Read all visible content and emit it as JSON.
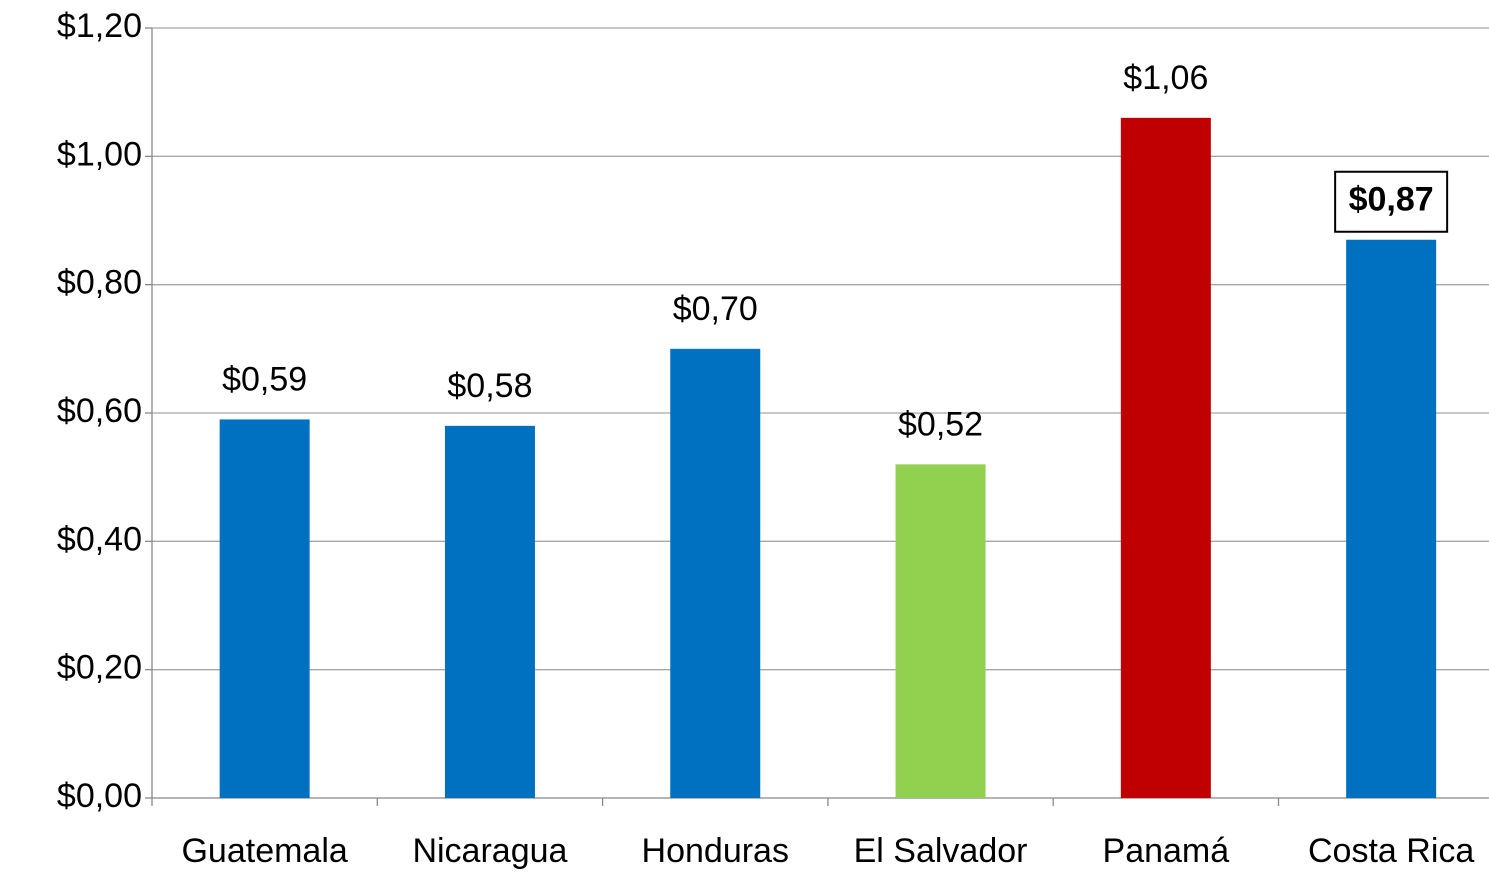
{
  "chart_data": {
    "type": "bar",
    "categories": [
      "Guatemala",
      "Nicaragua",
      "Honduras",
      "El Salvador",
      "Panamá",
      "Costa Rica"
    ],
    "values": [
      0.59,
      0.58,
      0.7,
      0.52,
      1.06,
      0.87
    ],
    "value_labels": [
      "$0,59",
      "$0,58",
      "$0,70",
      "$0,52",
      "$1,06",
      "$0,87"
    ],
    "colors": [
      "#0070c0",
      "#0070c0",
      "#0070c0",
      "#92d050",
      "#c00000",
      "#0070c0"
    ],
    "highlight_category": "Costa Rica",
    "ylim": [
      0,
      1.2
    ],
    "yticks": [
      {
        "value": 0,
        "label": "$0,00"
      },
      {
        "value": 0.2,
        "label": "$0,20"
      },
      {
        "value": 0.4,
        "label": "$0,40"
      },
      {
        "value": 0.6,
        "label": "$0,60"
      },
      {
        "value": 0.8,
        "label": "$0,80"
      },
      {
        "value": 1.0,
        "label": "$1,00"
      },
      {
        "value": 1.2,
        "label": "$1,20"
      }
    ],
    "grid": true
  }
}
